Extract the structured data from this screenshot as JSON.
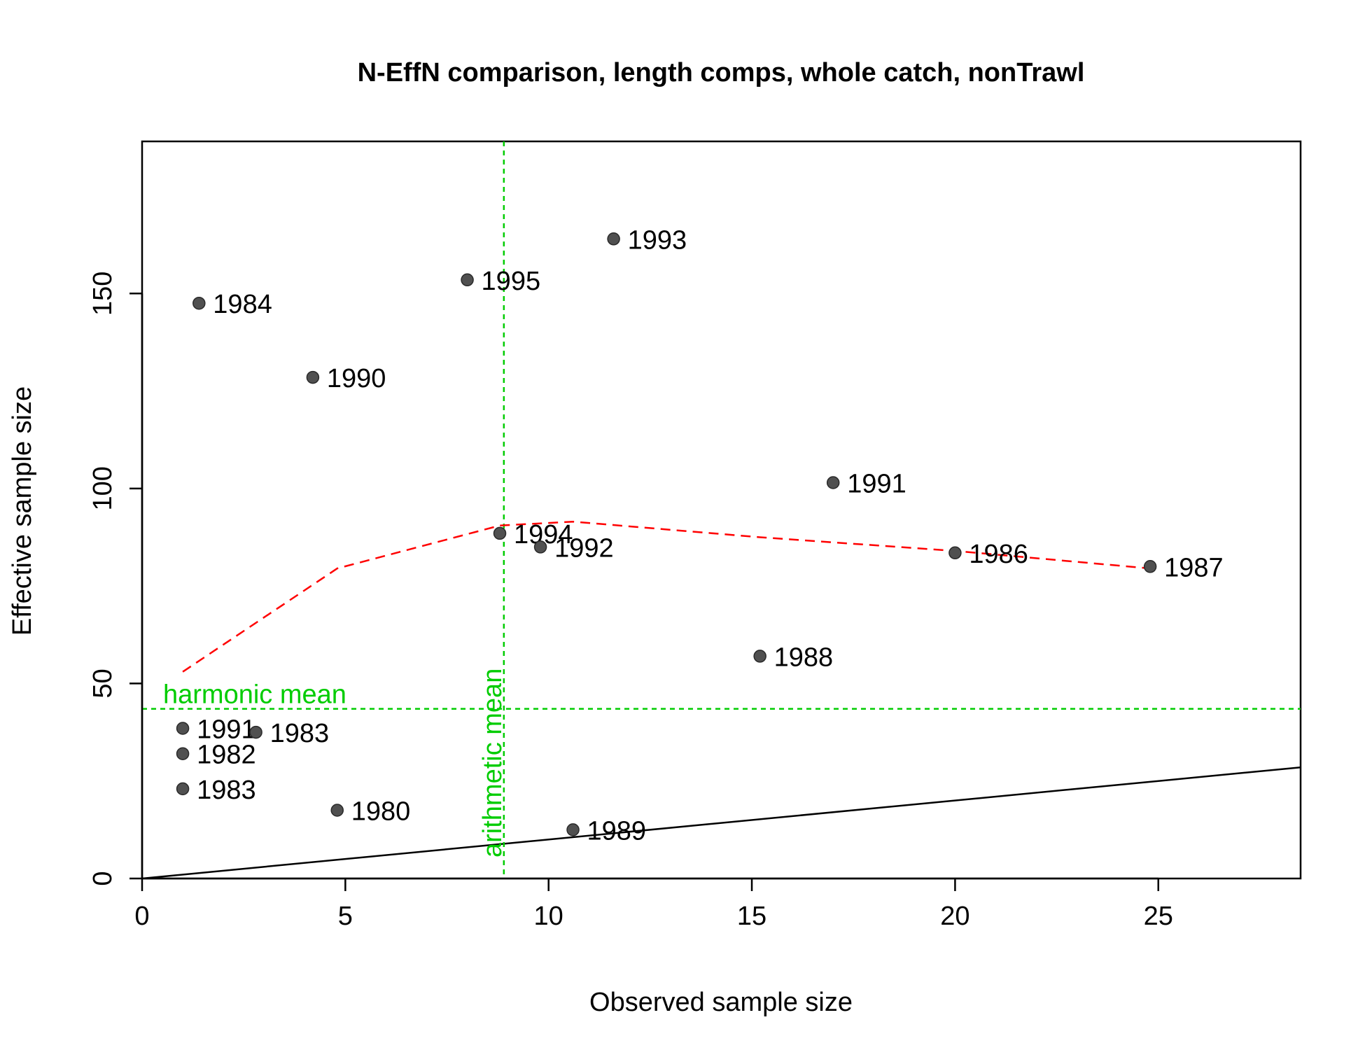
{
  "chart_data": {
    "type": "scatter",
    "title": "N-EffN comparison, length comps, whole catch, nonTrawl",
    "xlabel": "Observed sample size",
    "ylabel": "Effective sample size",
    "xlim": [
      0,
      28.5
    ],
    "ylim": [
      0,
      189
    ],
    "x_ticks": [
      0,
      5,
      10,
      15,
      20,
      25
    ],
    "y_ticks": [
      0,
      50,
      100,
      150
    ],
    "grid": false,
    "colors": {
      "points": "#505050",
      "loess": "#ff0000",
      "reference": "#00cc00",
      "one_to_one": "#000000"
    },
    "points": [
      {
        "x": 1.4,
        "y": 147.5,
        "label": "1984"
      },
      {
        "x": 4.2,
        "y": 128.5,
        "label": "1990"
      },
      {
        "x": 8.0,
        "y": 153.5,
        "label": "1995"
      },
      {
        "x": 11.6,
        "y": 164.0,
        "label": "1993"
      },
      {
        "x": 17.0,
        "y": 101.5,
        "label": "1991"
      },
      {
        "x": 8.8,
        "y": 88.5,
        "label": "1994"
      },
      {
        "x": 9.8,
        "y": 85.0,
        "label": "1992"
      },
      {
        "x": 20.0,
        "y": 83.5,
        "label": "1986"
      },
      {
        "x": 24.8,
        "y": 80.0,
        "label": "1987"
      },
      {
        "x": 15.2,
        "y": 57.0,
        "label": "1988"
      },
      {
        "x": 1.0,
        "y": 38.5,
        "label": "1991"
      },
      {
        "x": 2.8,
        "y": 37.5,
        "label": "1983"
      },
      {
        "x": 1.0,
        "y": 32.0,
        "label": "1982"
      },
      {
        "x": 1.0,
        "y": 23.0,
        "label": "1983"
      },
      {
        "x": 4.8,
        "y": 17.5,
        "label": "1980"
      },
      {
        "x": 10.6,
        "y": 12.5,
        "label": "1989"
      }
    ],
    "loess_line": [
      {
        "x": 1.0,
        "y": 53.0
      },
      {
        "x": 4.8,
        "y": 79.5
      },
      {
        "x": 8.8,
        "y": 90.5
      },
      {
        "x": 10.6,
        "y": 91.5
      },
      {
        "x": 15.2,
        "y": 87.5
      },
      {
        "x": 20.0,
        "y": 84.0
      },
      {
        "x": 24.8,
        "y": 79.5
      }
    ],
    "one_to_one_line": [
      {
        "x": 0,
        "y": 0
      },
      {
        "x": 28.5,
        "y": 28.5
      }
    ],
    "harmonic_mean": {
      "y": 43.5,
      "label": "harmonic mean"
    },
    "arithmetic_mean": {
      "x": 8.9,
      "label": "arithmetic mean"
    }
  }
}
